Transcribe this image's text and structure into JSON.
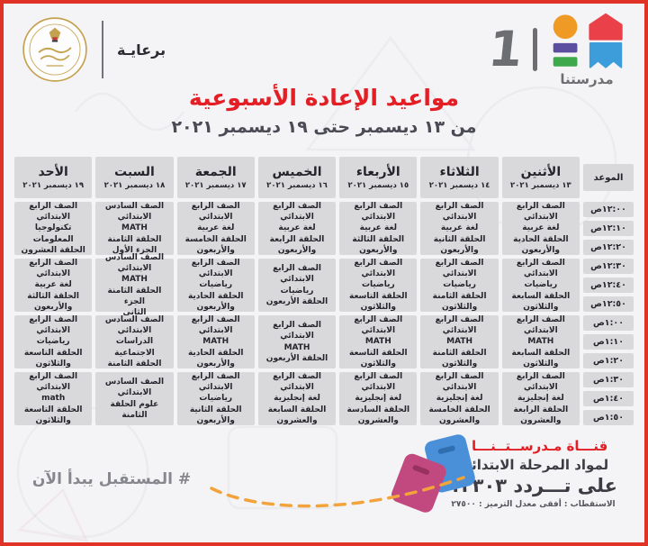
{
  "title": "مواعيد الإعادة الأسبوعية",
  "subtitle": "من ١٣ ديسمبر حتى ١٩ ديسمبر ٢٠٢١",
  "header": {
    "sponsor_label": "برعايـة",
    "ministry_seal_ring_text": "MINISTRY OF EDUCATION AND TECHNICAL EDUCATION",
    "logo_text": "مدرستنا",
    "logo_number": "1"
  },
  "table": {
    "time_header": "الموعد",
    "days": [
      {
        "name": "الأثنين",
        "date": "١٣ ديسمبر ٢٠٢١"
      },
      {
        "name": "الثلاثاء",
        "date": "١٤ ديسمبر ٢٠٢١"
      },
      {
        "name": "الأربعاء",
        "date": "١٥ ديسمبر ٢٠٢١"
      },
      {
        "name": "الخميس",
        "date": "١٦ ديسمبر ٢٠٢١"
      },
      {
        "name": "الجمعة",
        "date": "١٧ ديسمبر ٢٠٢١"
      },
      {
        "name": "السبت",
        "date": "١٨ ديسمبر ٢٠٢١"
      },
      {
        "name": "الأحد",
        "date": "١٩ ديسمبر ٢٠٢١"
      }
    ],
    "time_slots": [
      "١٢:٠٠ص",
      "١٢:١٠ص",
      "١٢:٢٠ص",
      "١٢:٣٠ص",
      "١٢:٤٠ص",
      "١٢:٥٠ص",
      "١:٠٠ص",
      "١:١٠ص",
      "١:٢٠ص",
      "١:٣٠ص",
      "١:٤٠ص",
      "١:٥٠ص"
    ],
    "rows": [
      {
        "cells": [
          {
            "lines": [
              "الصف الرابع الابتدائي",
              "لغة عربية",
              "الحلقة الحادية والأربعون"
            ]
          },
          {
            "lines": [
              "الصف الرابع الابتدائي",
              "لغة عربية",
              "الحلقة الثانية والأربعون"
            ]
          },
          {
            "lines": [
              "الصف الرابع الابتدائي",
              "لغة عربية",
              "الحلقة الثالثة والأربعون"
            ]
          },
          {
            "lines": [
              "الصف الرابع الابتدائي",
              "لغة عربية",
              "الحلقة الرابعة والأربعون"
            ]
          },
          {
            "lines": [
              "الصف الرابع الابتدائي",
              "لغة عربية",
              "الحلقة الخامسة والأربعون"
            ]
          },
          {
            "lines": [
              "الصف السادس الابتدائي",
              "MATH",
              "الحلقة الثامنة",
              "الجزء الأول"
            ]
          },
          {
            "lines": [
              "الصف الرابع الابتدائي",
              "تكنولوجيا المعلومات",
              "الحلقة العشرون"
            ]
          }
        ]
      },
      {
        "cells": [
          {
            "lines": [
              "الصف الرابع الابتدائي",
              "رياضيات",
              "الحلقة السابعة والثلاثون"
            ]
          },
          {
            "lines": [
              "الصف الرابع الابتدائي",
              "رياضيات",
              "الحلقة الثامنة والثلاثون"
            ]
          },
          {
            "lines": [
              "الصف الرابع الابتدائي",
              "رياضيات",
              "الحلقة التاسعة والثلاثون"
            ]
          },
          {
            "lines": [
              "الصف الرابع الابتدائي",
              "رياضيات",
              "الحلقة الأربعون"
            ]
          },
          {
            "lines": [
              "الصف الرابع الابتدائي",
              "رياضيات",
              "الحلقة الحادية والأربعون"
            ]
          },
          {
            "lines": [
              "الصف السادس الابتدائي",
              "MATH",
              "الحلقة الثامنة  الجزء",
              "الثاني"
            ]
          },
          {
            "lines": [
              "الصف الرابع الابتدائي",
              "لغة عربية",
              "الحلقة الثالثة والأربعون"
            ]
          }
        ]
      },
      {
        "cells": [
          {
            "lines": [
              "الصف الرابع الابتدائي",
              "MATH",
              "الحلقة السابعة والثلاثون"
            ]
          },
          {
            "lines": [
              "الصف الرابع الابتدائي",
              "MATH",
              "الحلقة الثامنة والثلاثون"
            ]
          },
          {
            "lines": [
              "الصف الرابع الابتدائي",
              "MATH",
              "الحلقة التاسعة والثلاثون"
            ]
          },
          {
            "lines": [
              "الصف الرابع الابتدائي",
              "MATH",
              "الحلقة الأربعون"
            ]
          },
          {
            "lines": [
              "الصف الرابع الابتدائي",
              "MATH",
              "الحلقة الحادية والأربعون"
            ]
          },
          {
            "lines": [
              "الصف السادس الابتدائي",
              "الدراسات الاجتماعية",
              "الحلقة الثامنة"
            ]
          },
          {
            "lines": [
              "الصف الرابع الابتدائي",
              "رياضيات",
              "الحلقة التاسعة والثلاثون"
            ]
          }
        ]
      },
      {
        "cells": [
          {
            "lines": [
              "الصف الرابع الابتدائي",
              "لغة إنجليزية",
              "الحلقة الرابعة والعشرون"
            ]
          },
          {
            "lines": [
              "الصف الرابع الابتدائي",
              "لغة إنجليزية",
              "الحلقة الخامسة",
              "والعشرون"
            ]
          },
          {
            "lines": [
              "الصف الرابع الابتدائي",
              "لغة إنجليزية",
              "الحلقة السادسة",
              "والعشرون"
            ]
          },
          {
            "lines": [
              "الصف الرابع الابتدائي",
              "لغة إنجليزية",
              "الحلقة السابعة والعشرون"
            ]
          },
          {
            "lines": [
              "الصف الرابع الابتدائي",
              "رياضيات",
              "الحلقة الثانية والأربعون"
            ]
          },
          {
            "lines": [
              "الصف السادس الابتدائي",
              "علوم  الحلقة الثامنة"
            ]
          },
          {
            "lines": [
              "الصف الرابع الابتدائي",
              "math",
              "الحلقة التاسعة والثلاثون"
            ]
          }
        ]
      }
    ]
  },
  "footer": {
    "channel_name": "قنـــاة مـدرســتــنـــا ١",
    "channel_audience": "لمواد المرحلة الابتدائية",
    "frequency": "على تـــردد ١٢٣٠٣",
    "technical": "الاستقطاب : أفقى  معدل الترميز : ٢٧٥٠٠",
    "hashtag": "# المستقبل يبدأ الآن"
  },
  "colors": {
    "frame_red": "#e03227",
    "accent_red": "#e31e24",
    "cell_bg": "#d9d9dc",
    "ink": "#24242c",
    "page_bg": "#f4f4f6",
    "dash_orange": "#f2a33c",
    "gray_logo": "#6d6e71",
    "logo_orange": "#f09a26",
    "logo_house_red": "#ea4049",
    "logo_purple": "#5b4ea0",
    "logo_green": "#3ea84c",
    "logo_blue": "#3d9ddb",
    "book_blue": "#4a90d9",
    "book_magenta": "#c2497f",
    "seal_gold": "#c5a24f"
  }
}
